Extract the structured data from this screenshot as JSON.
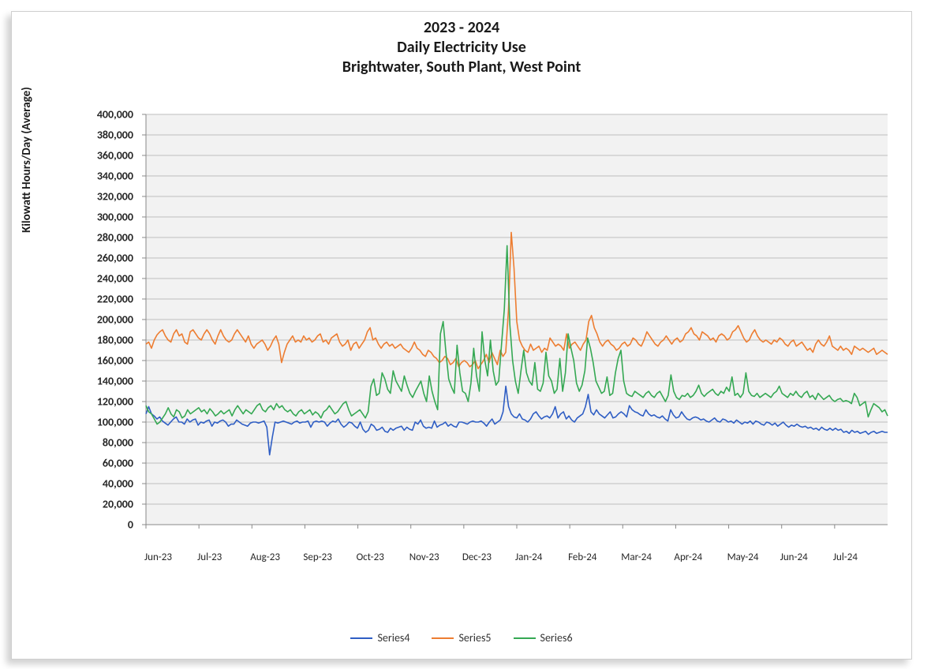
{
  "chart": {
    "type": "line",
    "title_lines": [
      "2023 - 2024",
      "Daily Electricity Use",
      "Brightwater, South Plant, West Point"
    ],
    "title_fontsize": 20,
    "title_fontweight": 700,
    "y_axis_label": "Kilowatt Hours/Day (Average)",
    "y_axis_label_fontsize": 15,
    "background_color": "#ffffff",
    "plot_background_color": "#f2f2f2",
    "grid_color": "#bfbfbf",
    "axis_line_color": "#888888",
    "ylim": [
      0,
      400000
    ],
    "ytick_step": 20000,
    "ytick_format": "comma",
    "ytick_fontsize": 14,
    "xtick_fontsize": 13,
    "line_width": 1.6,
    "x_categories": [
      "Jun-23",
      "Jul-23",
      "Aug-23",
      "Sep-23",
      "Oct-23",
      "Nov-23",
      "Dec-23",
      "Jan-24",
      "Feb-24",
      "Mar-24",
      "Apr-24",
      "May-24",
      "Jun-24",
      "Jul-24"
    ],
    "x_domain_count": 15,
    "series": [
      {
        "name": "Series4",
        "color": "#2f5ec4",
        "values": [
          108000,
          115000,
          108000,
          106000,
          103000,
          105000,
          101000,
          99000,
          97000,
          100000,
          103000,
          105000,
          100000,
          100000,
          98000,
          103000,
          100000,
          102000,
          103000,
          97000,
          100000,
          99000,
          101000,
          102000,
          96000,
          100000,
          99000,
          101000,
          102000,
          100000,
          96000,
          98000,
          98000,
          102000,
          100000,
          98000,
          97000,
          96000,
          99000,
          100000,
          100000,
          99000,
          100000,
          101000,
          95000,
          68000,
          85000,
          100000,
          99000,
          100000,
          101000,
          100000,
          99000,
          98000,
          100000,
          101000,
          99000,
          100000,
          100000,
          101000,
          95000,
          100000,
          101000,
          100000,
          101000,
          100000,
          96000,
          99000,
          101000,
          100000,
          103000,
          98000,
          95000,
          97000,
          100000,
          99000,
          96000,
          94000,
          100000,
          93000,
          90000,
          92000,
          98000,
          96000,
          92000,
          93000,
          95000,
          91000,
          90000,
          94000,
          92000,
          94000,
          95000,
          96000,
          92000,
          95000,
          93000,
          92000,
          100000,
          98000,
          102000,
          96000,
          94000,
          95000,
          94000,
          101000,
          95000,
          97000,
          98000,
          100000,
          96000,
          98000,
          96000,
          95000,
          100000,
          100000,
          99000,
          98000,
          100000,
          101000,
          100000,
          100000,
          101000,
          99000,
          96000,
          100000,
          103000,
          98000,
          100000,
          102000,
          110000,
          135000,
          115000,
          108000,
          105000,
          104000,
          108000,
          103000,
          102000,
          100000,
          103000,
          108000,
          110000,
          106000,
          103000,
          105000,
          106000,
          104000,
          108000,
          115000,
          104000,
          108000,
          110000,
          103000,
          106000,
          102000,
          100000,
          104000,
          106000,
          108000,
          115000,
          127000,
          110000,
          107000,
          112000,
          108000,
          106000,
          104000,
          107000,
          110000,
          104000,
          105000,
          108000,
          110000,
          108000,
          105000,
          116000,
          112000,
          110000,
          109000,
          107000,
          106000,
          112000,
          108000,
          106000,
          107000,
          105000,
          104000,
          106000,
          103000,
          101000,
          112000,
          107000,
          104000,
          105000,
          110000,
          106000,
          103000,
          102000,
          104000,
          105000,
          104000,
          102000,
          103000,
          101000,
          100000,
          102000,
          104000,
          101000,
          100000,
          103000,
          102000,
          100000,
          101000,
          99000,
          102000,
          100000,
          98000,
          100000,
          99000,
          101000,
          98000,
          101000,
          100000,
          98000,
          97000,
          100000,
          99000,
          97000,
          99000,
          96000,
          98000,
          100000,
          97000,
          95000,
          97000,
          96000,
          98000,
          96000,
          95000,
          96000,
          94000,
          95000,
          93000,
          94000,
          92000,
          95000,
          93000,
          92000,
          94000,
          92000,
          94000,
          92000,
          93000,
          90000,
          91000,
          89000,
          92000,
          90000,
          91000,
          89000,
          90000,
          91000,
          88000,
          90000,
          91000,
          89000,
          90000,
          91000,
          90000,
          90000
        ]
      },
      {
        "name": "Series5",
        "color": "#ed7d31",
        "values": [
          176000,
          178000,
          172000,
          180000,
          185000,
          188000,
          190000,
          184000,
          180000,
          178000,
          186000,
          190000,
          184000,
          186000,
          178000,
          176000,
          188000,
          190000,
          186000,
          182000,
          180000,
          186000,
          190000,
          186000,
          180000,
          176000,
          184000,
          190000,
          184000,
          180000,
          178000,
          180000,
          186000,
          190000,
          186000,
          182000,
          178000,
          184000,
          176000,
          172000,
          176000,
          178000,
          180000,
          176000,
          170000,
          174000,
          180000,
          184000,
          176000,
          158000,
          168000,
          176000,
          180000,
          184000,
          178000,
          180000,
          178000,
          184000,
          180000,
          182000,
          178000,
          180000,
          184000,
          186000,
          178000,
          180000,
          176000,
          182000,
          184000,
          186000,
          178000,
          174000,
          176000,
          180000,
          170000,
          176000,
          178000,
          172000,
          176000,
          180000,
          188000,
          192000,
          180000,
          182000,
          176000,
          172000,
          176000,
          178000,
          174000,
          176000,
          172000,
          174000,
          176000,
          172000,
          170000,
          168000,
          172000,
          178000,
          172000,
          170000,
          166000,
          164000,
          170000,
          168000,
          164000,
          162000,
          158000,
          160000,
          164000,
          162000,
          156000,
          158000,
          162000,
          154000,
          158000,
          160000,
          158000,
          154000,
          156000,
          160000,
          152000,
          156000,
          160000,
          166000,
          158000,
          168000,
          162000,
          156000,
          170000,
          164000,
          168000,
          210000,
          285000,
          250000,
          198000,
          180000,
          174000,
          170000,
          168000,
          176000,
          170000,
          172000,
          174000,
          168000,
          172000,
          170000,
          182000,
          178000,
          174000,
          176000,
          174000,
          170000,
          186000,
          172000,
          176000,
          178000,
          174000,
          170000,
          176000,
          180000,
          198000,
          204000,
          192000,
          186000,
          178000,
          174000,
          178000,
          180000,
          176000,
          174000,
          170000,
          172000,
          176000,
          178000,
          174000,
          176000,
          182000,
          180000,
          176000,
          174000,
          180000,
          188000,
          184000,
          180000,
          176000,
          174000,
          178000,
          180000,
          184000,
          180000,
          176000,
          180000,
          182000,
          178000,
          180000,
          186000,
          188000,
          192000,
          186000,
          184000,
          180000,
          188000,
          186000,
          184000,
          180000,
          182000,
          178000,
          184000,
          186000,
          184000,
          180000,
          182000,
          188000,
          190000,
          194000,
          188000,
          182000,
          178000,
          180000,
          186000,
          190000,
          184000,
          180000,
          178000,
          180000,
          178000,
          176000,
          180000,
          178000,
          182000,
          180000,
          176000,
          174000,
          178000,
          180000,
          174000,
          176000,
          178000,
          174000,
          170000,
          172000,
          168000,
          176000,
          180000,
          176000,
          174000,
          178000,
          184000,
          174000,
          172000,
          170000,
          174000,
          170000,
          172000,
          170000,
          166000,
          174000,
          172000,
          170000,
          172000,
          170000,
          168000,
          170000,
          172000,
          166000,
          168000,
          170000,
          168000,
          166000
        ]
      },
      {
        "name": "Series6",
        "color": "#35a853",
        "values": [
          116000,
          110000,
          108000,
          103000,
          98000,
          100000,
          104000,
          108000,
          114000,
          108000,
          105000,
          112000,
          110000,
          104000,
          106000,
          112000,
          108000,
          110000,
          112000,
          114000,
          110000,
          112000,
          108000,
          113000,
          110000,
          106000,
          108000,
          111000,
          108000,
          110000,
          112000,
          106000,
          112000,
          116000,
          112000,
          108000,
          112000,
          110000,
          108000,
          112000,
          116000,
          118000,
          112000,
          110000,
          114000,
          116000,
          112000,
          118000,
          114000,
          116000,
          112000,
          110000,
          112000,
          108000,
          106000,
          110000,
          112000,
          108000,
          110000,
          112000,
          107000,
          110000,
          108000,
          104000,
          110000,
          112000,
          116000,
          112000,
          108000,
          110000,
          114000,
          118000,
          120000,
          112000,
          106000,
          108000,
          110000,
          112000,
          108000,
          104000,
          110000,
          135000,
          142000,
          126000,
          128000,
          148000,
          142000,
          132000,
          128000,
          150000,
          140000,
          135000,
          130000,
          145000,
          136000,
          128000,
          124000,
          130000,
          135000,
          140000,
          128000,
          120000,
          145000,
          130000,
          120000,
          112000,
          186000,
          198000,
          168000,
          142000,
          134000,
          128000,
          175000,
          148000,
          130000,
          128000,
          120000,
          138000,
          172000,
          145000,
          130000,
          188000,
          160000,
          145000,
          180000,
          150000,
          136000,
          140000,
          175000,
          210000,
          272000,
          195000,
          160000,
          140000,
          128000,
          150000,
          170000,
          148000,
          140000,
          136000,
          158000,
          132000,
          130000,
          138000,
          168000,
          145000,
          140000,
          128000,
          132000,
          162000,
          130000,
          148000,
          186000,
          172000,
          160000,
          138000,
          130000,
          136000,
          150000,
          182000,
          172000,
          158000,
          140000,
          134000,
          128000,
          130000,
          144000,
          126000,
          128000,
          148000,
          162000,
          170000,
          140000,
          128000,
          126000,
          125000,
          130000,
          128000,
          126000,
          124000,
          128000,
          130000,
          126000,
          124000,
          128000,
          130000,
          125000,
          120000,
          126000,
          146000,
          130000,
          124000,
          122000,
          126000,
          125000,
          128000,
          124000,
          126000,
          130000,
          136000,
          128000,
          125000,
          128000,
          130000,
          132000,
          128000,
          126000,
          130000,
          128000,
          134000,
          130000,
          144000,
          126000,
          128000,
          124000,
          128000,
          148000,
          130000,
          126000,
          125000,
          128000,
          124000,
          126000,
          128000,
          126000,
          124000,
          128000,
          130000,
          135000,
          128000,
          126000,
          124000,
          128000,
          126000,
          130000,
          126000,
          124000,
          128000,
          130000,
          124000,
          126000,
          122000,
          128000,
          125000,
          122000,
          124000,
          126000,
          122000,
          120000,
          122000,
          123000,
          120000,
          121000,
          120000,
          118000,
          128000,
          124000,
          116000,
          118000,
          120000,
          105000,
          112000,
          118000,
          116000,
          114000,
          110000,
          112000,
          106000
        ]
      }
    ],
    "legend": [
      "Series4",
      "Series5",
      "Series6"
    ]
  }
}
